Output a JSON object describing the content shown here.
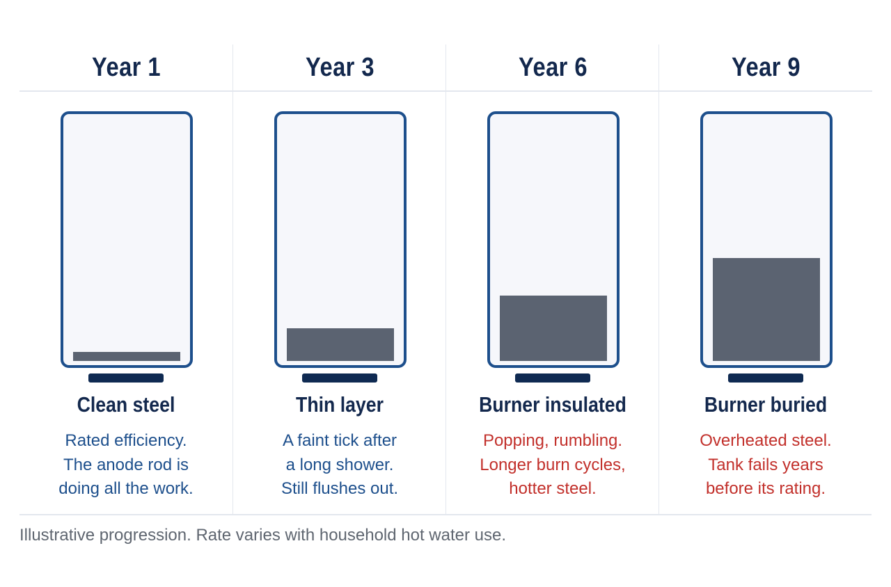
{
  "stages": [
    {
      "year": "Year 1",
      "title": "Clean steel",
      "description": "Rated efficiency.\nThe anode rod is\ndoing all the work.",
      "tone": "info",
      "sediment_fraction": 0.035
    },
    {
      "year": "Year 3",
      "title": "Thin layer",
      "description": "A faint tick after\na long shower.\nStill flushes out.",
      "tone": "info",
      "sediment_fraction": 0.13
    },
    {
      "year": "Year 6",
      "title": "Burner insulated",
      "description": "Popping, rumbling.\nLonger burn cycles,\nhotter steel.",
      "tone": "warn",
      "sediment_fraction": 0.26
    },
    {
      "year": "Year 9",
      "title": "Burner buried",
      "description": "Overheated steel.\nTank fails years\nbefore its rating.",
      "tone": "warn",
      "sediment_fraction": 0.41
    }
  ],
  "footnote": "Illustrative progression. Rate varies with household hot water use.",
  "colors": {
    "tank_outline": "#1d4f8c",
    "sediment": "#5b6371",
    "heading": "#13284d",
    "info_text": "#1d4f8c",
    "warning_text": "#c2302b"
  }
}
